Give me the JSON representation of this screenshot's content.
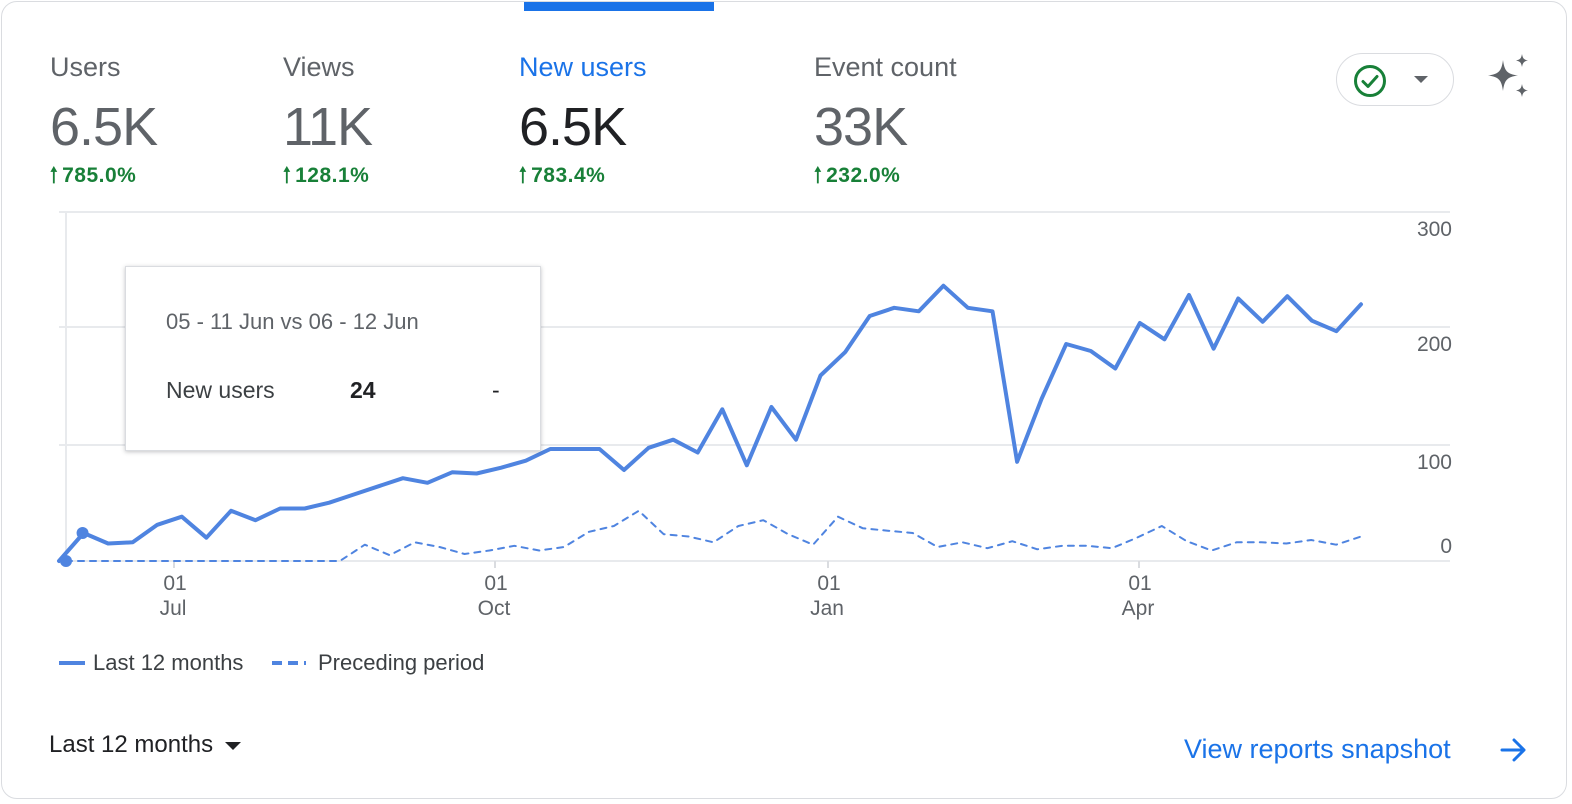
{
  "metrics": [
    {
      "label": "Users",
      "value": "6.5K",
      "change": "785.0%",
      "active": false
    },
    {
      "label": "Views",
      "value": "11K",
      "change": "128.1%",
      "active": false
    },
    {
      "label": "New users",
      "value": "6.5K",
      "change": "783.4%",
      "active": true
    },
    {
      "label": "Event count",
      "value": "33K",
      "change": "232.0%",
      "active": false
    }
  ],
  "icons": {
    "status": "check-circle-icon",
    "dropdown": "caret-down-icon",
    "insights": "sparkle-icon",
    "change": "arrow-up-icon",
    "link": "arrow-right-icon"
  },
  "colors": {
    "accent": "#1a73e8",
    "series": "#4f84e0",
    "positive": "#188038",
    "status_check": "#188038"
  },
  "chart_data": {
    "type": "line",
    "y_ticks": [
      "300",
      "200",
      "100",
      "0"
    ],
    "ylim": [
      0,
      300
    ],
    "x_ticks": [
      {
        "day": "01",
        "month": "Jul"
      },
      {
        "day": "01",
        "month": "Oct"
      },
      {
        "day": "01",
        "month": "Jan"
      },
      {
        "day": "01",
        "month": "Apr"
      }
    ],
    "grid": true,
    "legend_position": "bottom-left",
    "series": [
      {
        "name": "Last 12 months",
        "style": "solid",
        "values": [
          0,
          24,
          15,
          16,
          31,
          38,
          20,
          43,
          35,
          45,
          45,
          50,
          57,
          64,
          71,
          67,
          76,
          75,
          80,
          86,
          96,
          96,
          96,
          78,
          97,
          104,
          93,
          130,
          82,
          132,
          104,
          159,
          179,
          210,
          217,
          214,
          236,
          217,
          214,
          85,
          139,
          186,
          180,
          165,
          204,
          190,
          228,
          182,
          225,
          205,
          227,
          206,
          197,
          220
        ]
      },
      {
        "name": "Preceding period",
        "style": "dashed",
        "values": [
          0,
          0,
          0,
          0,
          0,
          0,
          0,
          0,
          0,
          0,
          0,
          0,
          14,
          5,
          16,
          12,
          6,
          9,
          13,
          9,
          12,
          25,
          30,
          43,
          23,
          21,
          16,
          30,
          35,
          23,
          14,
          38,
          28,
          26,
          24,
          12,
          16,
          11,
          17,
          10,
          13,
          13,
          11,
          20,
          30,
          17,
          9,
          16,
          16,
          15,
          18,
          14,
          21
        ]
      }
    ]
  },
  "tooltip": {
    "range": "05 - 11 Jun vs 06 - 12 Jun",
    "metric": "New users",
    "value": "24",
    "previous": "-"
  },
  "legend": {
    "current": "Last 12 months",
    "previous": "Preceding period"
  },
  "footer": {
    "range_select": "Last 12 months",
    "view_link": "View reports snapshot"
  }
}
